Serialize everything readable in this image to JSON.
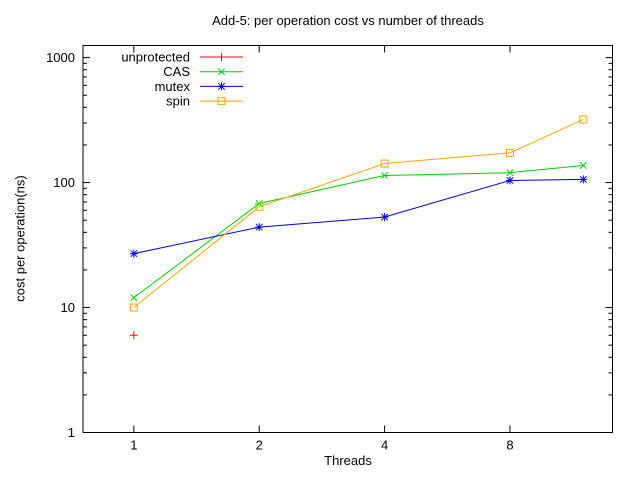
{
  "window": {
    "background": "#ffffff",
    "foreground": "#000000"
  },
  "chart_data": {
    "type": "line",
    "title": "Add-5: per operation cost vs number of threads",
    "xlabel": "Threads",
    "ylabel": "cost per operation(ns)",
    "x_scale": "log2",
    "y_scale": "log10",
    "xlim": [
      0.755,
      14.1
    ],
    "ylim": [
      1,
      1250
    ],
    "x_ticks": [
      1,
      2,
      4,
      8
    ],
    "y_ticks": [
      1,
      10,
      100,
      1000
    ],
    "y_minor_ticks": true,
    "grid": false,
    "legend_position": "top-left-inside",
    "series": [
      {
        "name": "unprotected",
        "color": "#ff0000",
        "marker": "plus",
        "x": [
          1
        ],
        "y": [
          6
        ]
      },
      {
        "name": "CAS",
        "color": "#00d000",
        "marker": "cross",
        "x": [
          1,
          2,
          4,
          8,
          12
        ],
        "y": [
          12,
          68,
          114,
          120,
          137
        ]
      },
      {
        "name": "mutex",
        "color": "#0000f0",
        "marker": "star",
        "x": [
          1,
          2,
          4,
          8,
          12
        ],
        "y": [
          27,
          44,
          53,
          104,
          106
        ]
      },
      {
        "name": "spin",
        "color": "#ffa500",
        "marker": "square",
        "x": [
          1,
          2,
          4,
          8,
          12
        ],
        "y": [
          10,
          64,
          142,
          173,
          320
        ]
      }
    ]
  }
}
